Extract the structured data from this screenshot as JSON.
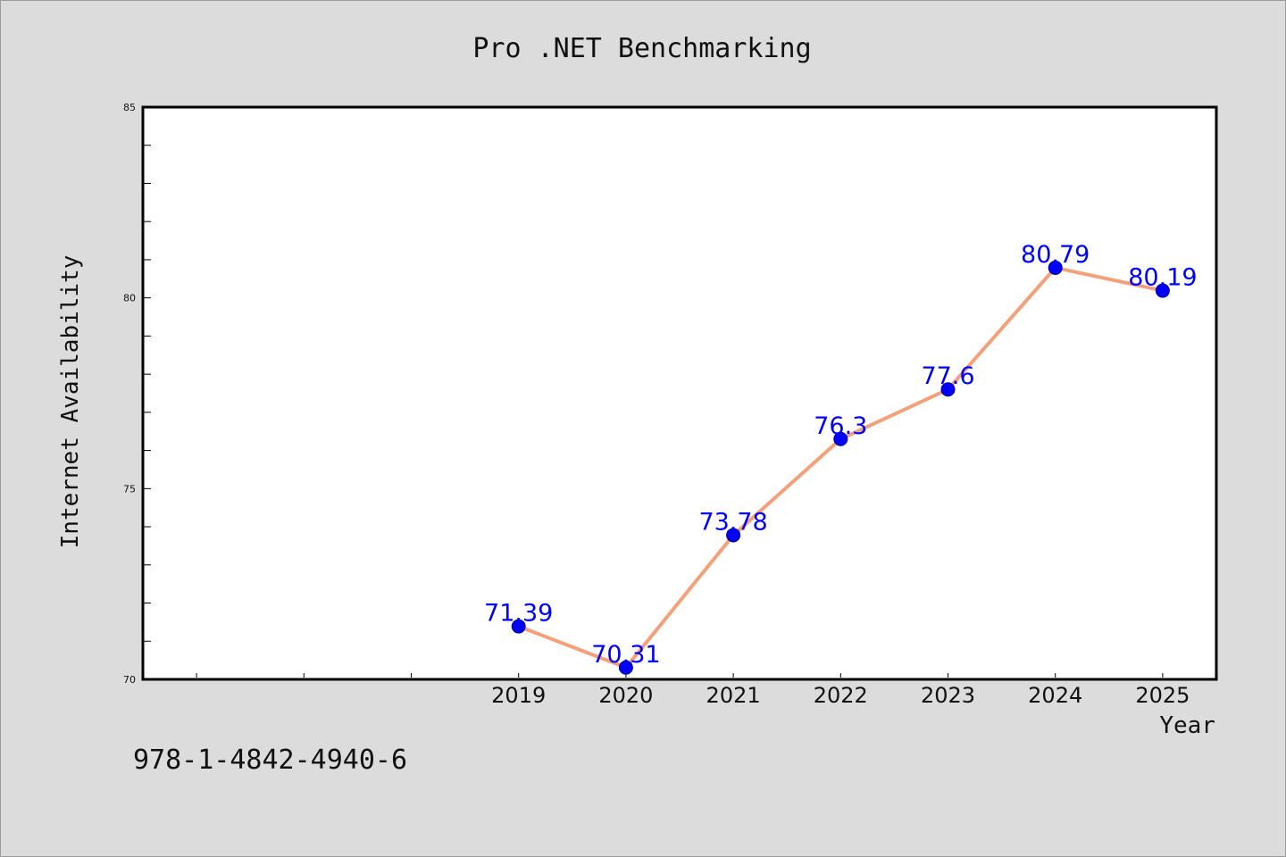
{
  "chart_data": {
    "type": "line",
    "title": "Pro .NET Benchmarking",
    "xlabel": "Year",
    "ylabel": "Internet Availability",
    "categories": [
      "2019",
      "2020",
      "2021",
      "2022",
      "2023",
      "2024",
      "2025"
    ],
    "values": [
      71.39,
      70.31,
      73.78,
      76.3,
      77.6,
      80.79,
      80.19
    ],
    "data_labels": [
      "71.39",
      "70.31",
      "73.78",
      "76.3",
      "77.6",
      "80.79",
      "80.19"
    ],
    "x_range": [
      2015.5,
      2025.5
    ],
    "ylim": [
      70,
      85
    ],
    "yticks": [
      "70",
      "75",
      "80",
      "85"
    ],
    "grid": false,
    "legend": "none",
    "line_color": "#f4a07a",
    "marker_color": "#0000ff",
    "label_color": "#0000ff"
  },
  "caption": "978-1-4842-4940-6"
}
